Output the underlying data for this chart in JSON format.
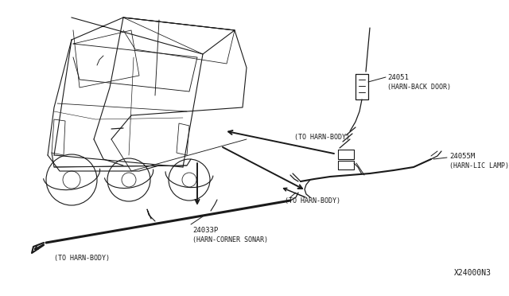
{
  "bg_color": "#ffffff",
  "line_color": "#1a1a1a",
  "text_color": "#1a1a1a",
  "diagram_id": "X24000N3",
  "font_family": "monospace",
  "labels": {
    "part1_num": "24051",
    "part1_name": "(HARN-BACK DOOR)",
    "part2_num": "24055M",
    "part2_name": "(HARN-LIC LAMP)",
    "part3_num": "24033P",
    "part3_name": "(HARN-CORNER SONAR)",
    "to_body1": "(TO HARN-BODY)",
    "to_body2": "(TO HARN-BODY)",
    "to_body3": "(TO HARN-BODY)"
  }
}
